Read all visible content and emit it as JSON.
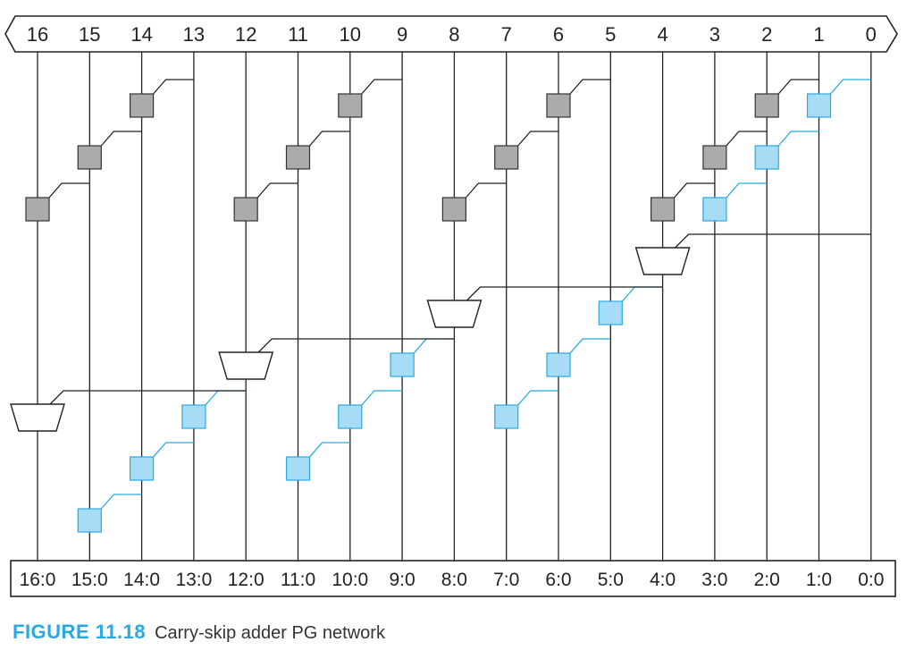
{
  "diagram": {
    "bit_labels": [
      "16",
      "15",
      "14",
      "13",
      "12",
      "11",
      "10",
      "9",
      "8",
      "7",
      "6",
      "5",
      "4",
      "3",
      "2",
      "1",
      "0"
    ],
    "output_labels": [
      "16:0",
      "15:0",
      "14:0",
      "13:0",
      "12:0",
      "11:0",
      "10:0",
      "9:0",
      "8:0",
      "7:0",
      "6:0",
      "5:0",
      "4:0",
      "3:0",
      "2:0",
      "1:0",
      "0:0"
    ],
    "colors": {
      "black_cell": "#a9abad",
      "gray_cell": "#a6dcf5",
      "wire": "#222222",
      "blue_wire": "#29a9e0",
      "mux_fill": "#ffffff"
    },
    "black_cells": [
      {
        "col": 14,
        "row": 0,
        "from": 13
      },
      {
        "col": 15,
        "row": 1,
        "from": 14
      },
      {
        "col": 16,
        "row": 2,
        "from": 15
      },
      {
        "col": 10,
        "row": 0,
        "from": 9
      },
      {
        "col": 11,
        "row": 1,
        "from": 10
      },
      {
        "col": 12,
        "row": 2,
        "from": 11
      },
      {
        "col": 6,
        "row": 0,
        "from": 5
      },
      {
        "col": 7,
        "row": 1,
        "from": 6
      },
      {
        "col": 8,
        "row": 2,
        "from": 7
      },
      {
        "col": 2,
        "row": 0,
        "from": 1
      },
      {
        "col": 3,
        "row": 1,
        "from": 2
      },
      {
        "col": 4,
        "row": 2,
        "from": 3
      }
    ],
    "gray_cells": [
      {
        "col": 1,
        "row": 0,
        "from": 0
      },
      {
        "col": 2,
        "row": 1,
        "from": 1
      },
      {
        "col": 3,
        "row": 2,
        "from": 2
      },
      {
        "col": 5,
        "row": 4,
        "from": 4
      },
      {
        "col": 6,
        "row": 5,
        "from": 5
      },
      {
        "col": 7,
        "row": 6,
        "from": 6
      },
      {
        "col": 9,
        "row": 5,
        "from": 8
      },
      {
        "col": 10,
        "row": 6,
        "from": 9
      },
      {
        "col": 11,
        "row": 7,
        "from": 10
      },
      {
        "col": 13,
        "row": 6,
        "from": 12
      },
      {
        "col": 14,
        "row": 7,
        "from": 13
      },
      {
        "col": 15,
        "row": 8,
        "from": 14
      }
    ],
    "muxes": [
      {
        "col": 4,
        "from": 0
      },
      {
        "col": 8,
        "from": 4
      },
      {
        "col": 12,
        "from": 8
      },
      {
        "col": 16,
        "from": 12
      }
    ]
  },
  "caption": {
    "number": "FIGURE 11.18",
    "text": "Carry-skip adder PG network",
    "number_color": "#29a9e0"
  }
}
